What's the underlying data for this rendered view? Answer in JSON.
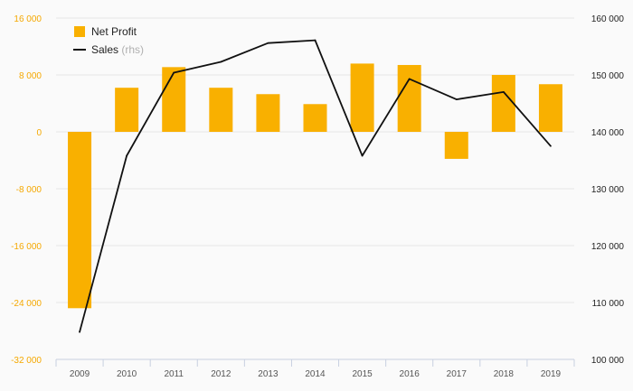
{
  "chart_data": {
    "type": "bar",
    "categories": [
      "2009",
      "2010",
      "2011",
      "2012",
      "2013",
      "2014",
      "2015",
      "2016",
      "2017",
      "2018",
      "2019"
    ],
    "series": [
      {
        "name": "Net Profit",
        "type": "bar",
        "axis": "left",
        "color": "#f9b000",
        "values": [
          -24800,
          6200,
          9100,
          6200,
          5300,
          3900,
          9600,
          9400,
          -3800,
          8000,
          6700
        ]
      },
      {
        "name": "Sales",
        "name_note": "(rhs)",
        "type": "line",
        "axis": "right",
        "color": "#111111",
        "values": [
          104800,
          135800,
          150400,
          152300,
          155600,
          156100,
          135800,
          149300,
          145700,
          147000,
          137500
        ]
      }
    ],
    "y_left": {
      "ylim": [
        -32000,
        16000
      ],
      "ticks": [
        16000,
        8000,
        0,
        -8000,
        -16000,
        -24000,
        -32000
      ],
      "tick_labels": [
        "16 000",
        "8 000",
        "0",
        "-8 000",
        "-16 000",
        "-24 000",
        "-32 000"
      ],
      "color": "#f5a800"
    },
    "y_right": {
      "ylim": [
        100000,
        160000
      ],
      "ticks": [
        160000,
        150000,
        140000,
        130000,
        120000,
        110000,
        100000
      ],
      "tick_labels": [
        "160 000",
        "150 000",
        "140 000",
        "130 000",
        "120 000",
        "110 000",
        "100 000"
      ]
    },
    "grid": true,
    "legend": {
      "position": "top-left"
    }
  }
}
